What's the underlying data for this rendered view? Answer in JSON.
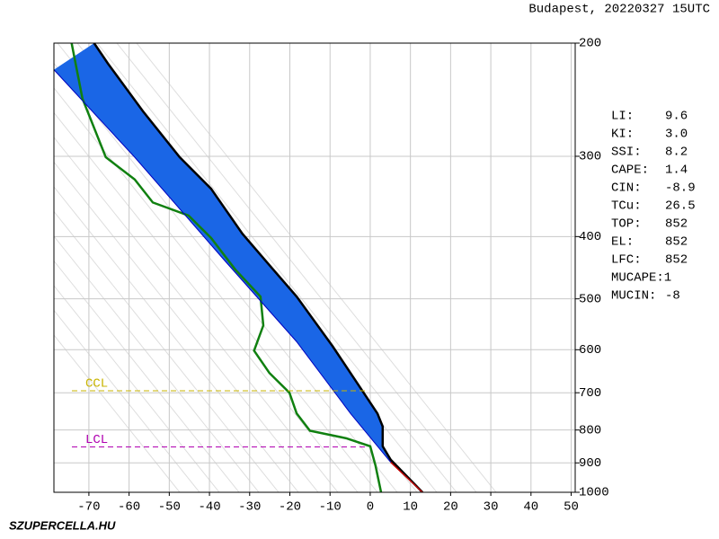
{
  "chart_data": {
    "type": "sounding",
    "title": "Budapest, 20220327 15UTC",
    "footer": "SZUPERCELLA.HU",
    "xlim": [
      -78.7,
      51
    ],
    "xticks": [
      -70,
      -60,
      -50,
      -40,
      -30,
      -20,
      -10,
      0,
      10,
      20,
      30,
      40,
      50
    ],
    "ylim": [
      200,
      1000
    ],
    "yticks": [
      200,
      300,
      400,
      500,
      600,
      700,
      800,
      900,
      1000
    ],
    "log_y": true,
    "grid": true,
    "series": [
      {
        "name": "temperature",
        "color": "#000000",
        "x": [
          -68.7,
          -65.3,
          -56.4,
          -47.4,
          -39.6,
          -31.8,
          -25.1,
          -18.3,
          -9.4,
          -2.7,
          1.8,
          3.1,
          3.1,
          5.1,
          13
        ],
        "y": [
          200,
          215,
          256,
          301,
          337,
          396,
          443,
          496,
          592,
          684,
          754,
          790,
          848,
          890,
          1000
        ]
      },
      {
        "name": "dewpoint",
        "color": "#108010",
        "x": [
          -74.3,
          -71.6,
          -65.8,
          -58.6,
          -54.1,
          -45.2,
          -39.6,
          -33.6,
          -27.3,
          -26.6,
          -28.9,
          -25.1,
          -20.1,
          -18.3,
          -15,
          -6,
          0,
          1.3,
          2.7
        ],
        "y": [
          200,
          244,
          301,
          326,
          354,
          371,
          402,
          450,
          496,
          550,
          602,
          652,
          700,
          754,
          802,
          824,
          848,
          908,
          1000
        ]
      },
      {
        "name": "parcel",
        "color": "#0000c0",
        "x": [
          -78.7,
          -58.6,
          -36.2,
          -18.3,
          -4.9,
          5.1
        ],
        "y": [
          220,
          301,
          436,
          583,
          754,
          898
        ]
      },
      {
        "name": "parcel-dry",
        "color": "#c00000",
        "x": [
          5.1,
          13
        ],
        "y": [
          898,
          1000
        ]
      }
    ],
    "fill_color": "#1a66e6",
    "levels": [
      {
        "label": "CCL",
        "pressure": 695,
        "color": "#c8b400"
      },
      {
        "label": "LCL",
        "pressure": 850,
        "color": "#b000b0"
      }
    ],
    "indices": [
      {
        "label": "LI:",
        "value": "9.6"
      },
      {
        "label": "KI:",
        "value": "3.0"
      },
      {
        "label": "SSI:",
        "value": "8.2"
      },
      {
        "label": "CAPE:",
        "value": "1.4"
      },
      {
        "label": "CIN:",
        "value": "-8.9"
      },
      {
        "label": "TCu:",
        "value": "26.5"
      },
      {
        "label": "TOP:",
        "value": "852"
      },
      {
        "label": "EL:",
        "value": "852"
      },
      {
        "label": "LFC:",
        "value": "852"
      },
      {
        "label": "MUCAPE:",
        "value": "1"
      },
      {
        "label": "MUCIN:",
        "value": "-8"
      }
    ]
  }
}
